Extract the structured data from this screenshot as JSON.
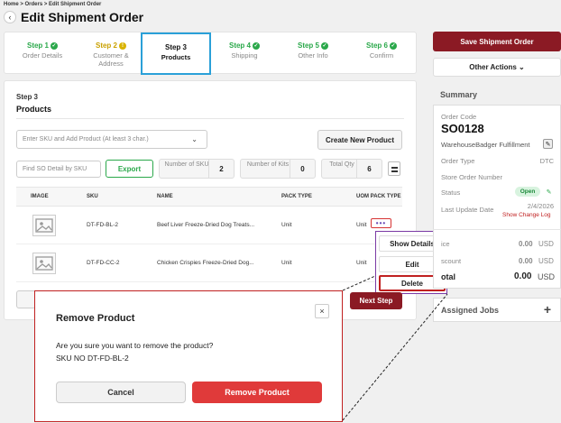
{
  "breadcrumb": "Home > Orders > Edit Shipment Order",
  "back_glyph": "‹",
  "page_title": "Edit Shipment Order",
  "steps": [
    {
      "num": "Step 1",
      "label": "Order Details",
      "state": "done"
    },
    {
      "num": "Step 2",
      "label": "Customer & Address",
      "state": "warn"
    },
    {
      "num": "Step 3",
      "label": "Products",
      "state": "active"
    },
    {
      "num": "Step 4",
      "label": "Shipping",
      "state": "done"
    },
    {
      "num": "Step 5",
      "label": "Other Info",
      "state": "done"
    },
    {
      "num": "Step 6",
      "label": "Confirm",
      "state": "done"
    }
  ],
  "section": {
    "step": "Step 3",
    "title": "Products"
  },
  "product_select_placeholder": "Enter SKU and Add Product (At least 3 char.)",
  "create_new_product": "Create New Product",
  "find_placeholder": "Find SO Detail by SKU",
  "export": "Export",
  "stats": [
    {
      "label": "Number of SKU",
      "value": "2"
    },
    {
      "label": "Number of Kits",
      "value": "0"
    },
    {
      "label": "Total Qty",
      "value": "6"
    }
  ],
  "table": {
    "headers": [
      "IMAGE",
      "SKU",
      "NAME",
      "PACK TYPE",
      "UOM PACK TYPE"
    ],
    "rows": [
      {
        "sku": "DT-FD-BL-2",
        "name": "Beef Liver Freeze-Dried Dog Treats...",
        "pack": "Unit",
        "uom": "Unit"
      },
      {
        "sku": "DT-FD-CC-2",
        "name": "Chicken Crispies Freeze-Dried Dog...",
        "pack": "Unit",
        "uom": "Unit"
      }
    ]
  },
  "row_menu": {
    "trigger": "•••",
    "items": [
      "Show Details",
      "Edit",
      "Delete"
    ]
  },
  "next_step": "Next Step",
  "actions": {
    "save": "Save Shipment Order",
    "other": "Other Actions ⌄"
  },
  "summary": {
    "title": "Summary",
    "order_code_label": "Order Code",
    "order_code": "SO0128",
    "warehouse": "WarehouseBadger Fulfillment",
    "order_type_label": "Order Type",
    "order_type": "DTC",
    "store_order_label": "Store Order Number",
    "status_label": "Status",
    "status": "Open",
    "last_update_label": "Last Update Date",
    "last_update": "2/4/2026",
    "show_change_log": "Show Change Log",
    "price_label": "ice",
    "price": "0.00",
    "discount_label": "scount",
    "discount": "0.00",
    "total_label": "otal",
    "total": "0.00",
    "currency": "USD"
  },
  "assigned_jobs": {
    "title": "Assigned Jobs",
    "add": "+"
  },
  "modal": {
    "title": "Remove Product",
    "close": "×",
    "message": "Are you sure you want to remove the product?",
    "sku_line": "SKU NO DT-FD-BL-2",
    "cancel": "Cancel",
    "confirm": "Remove Product"
  },
  "colors": {
    "primary": "#8b1a24",
    "success": "#2aa84a",
    "danger": "#e03a3a",
    "highlight": "#c02020",
    "active_step": "#2aa0d8"
  }
}
